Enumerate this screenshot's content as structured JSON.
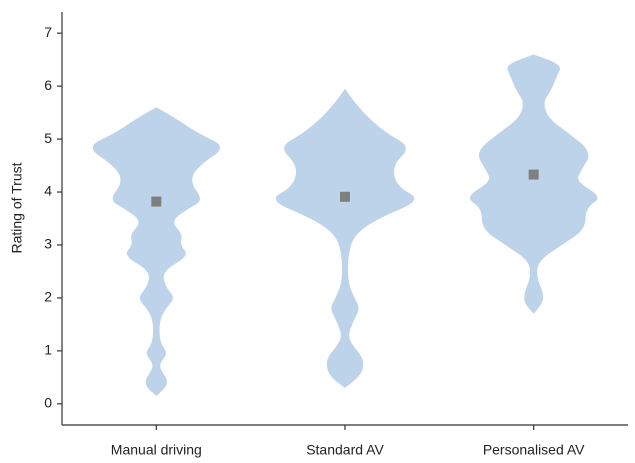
{
  "chart_data": {
    "type": "violin",
    "ylabel": "Rating of Trust",
    "categories": [
      "Manual driving",
      "Standard AV",
      "Personalised AV"
    ],
    "ylim": [
      -0.4,
      7.4
    ],
    "yticks": [
      0,
      1,
      2,
      3,
      4,
      5,
      6,
      7
    ],
    "violin_color": "#bcd3ea",
    "mean_color": "#7f7f7f",
    "means": [
      3.82,
      3.91,
      4.33
    ],
    "violins": [
      {
        "y": [
          0.15,
          0.3,
          0.45,
          0.6,
          0.75,
          0.95,
          1.1,
          1.3,
          1.6,
          1.8,
          2.0,
          2.2,
          2.5,
          2.8,
          3.0,
          3.2,
          3.45,
          3.7,
          3.85,
          4.2,
          4.5,
          4.85,
          5.1,
          5.4,
          5.6
        ],
        "width": [
          0,
          0.1,
          0.12,
          0.06,
          0.03,
          0.12,
          0.06,
          0.03,
          0.04,
          0.1,
          0.2,
          0.1,
          0.06,
          0.35,
          0.25,
          0.28,
          0.15,
          0.35,
          0.5,
          0.35,
          0.45,
          0.75,
          0.45,
          0.2,
          0
        ]
      },
      {
        "y": [
          0.3,
          0.5,
          0.7,
          0.9,
          1.1,
          1.3,
          1.6,
          1.8,
          2.0,
          2.3,
          2.8,
          3.2,
          3.5,
          3.85,
          4.1,
          4.5,
          4.85,
          5.1,
          5.4,
          5.7,
          5.95
        ],
        "width": [
          0,
          0.15,
          0.2,
          0.18,
          0.08,
          0.03,
          0.1,
          0.16,
          0.1,
          0.03,
          0.03,
          0.1,
          0.35,
          0.82,
          0.55,
          0.5,
          0.7,
          0.45,
          0.25,
          0.1,
          0
        ]
      },
      {
        "y": [
          1.7,
          1.9,
          2.1,
          2.4,
          2.7,
          3.0,
          3.3,
          3.7,
          3.9,
          4.2,
          4.4,
          4.75,
          5.1,
          5.4,
          5.7,
          5.9,
          6.2,
          6.4,
          6.6
        ],
        "width": [
          0,
          0.1,
          0.1,
          0.03,
          0.05,
          0.3,
          0.55,
          0.55,
          0.73,
          0.45,
          0.5,
          0.62,
          0.38,
          0.15,
          0.1,
          0.18,
          0.25,
          0.3,
          0
        ]
      }
    ]
  }
}
